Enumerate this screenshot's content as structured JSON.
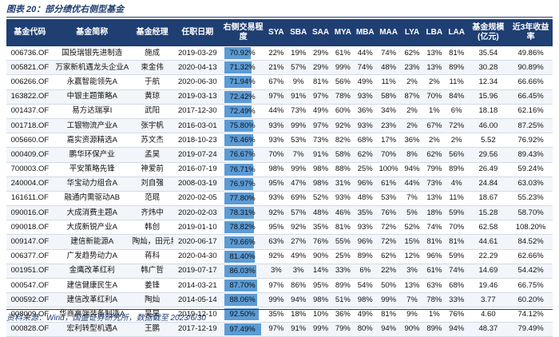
{
  "caption": "图表 20：部分绩优右侧型基金",
  "source": "资料来源：Wind，国盛证券研究所，数据截至 2023/6/30",
  "headers": [
    "基金代码",
    "基金简称",
    "基金经理",
    "任职日期",
    "右侧交易程度",
    "SYA",
    "SBA",
    "SAA",
    "MYA",
    "MBA",
    "MAA",
    "LYA",
    "LBA",
    "LAA",
    "基金规模(亿元)",
    "近3年收益率"
  ],
  "rows": [
    [
      "006736.OF",
      "国投瑞银先进制造",
      "施成",
      "2019-03-29",
      "70.92%",
      70.92,
      "22%",
      "19%",
      "29%",
      "61%",
      "44%",
      "74%",
      "62%",
      "13%",
      "81%",
      "35.54",
      "49.86%"
    ],
    [
      "005821.OF",
      "万家新机遇龙头企业A",
      "束金伟",
      "2020-04-13",
      "71.32%",
      71.32,
      "21%",
      "57%",
      "29%",
      "99%",
      "74%",
      "48%",
      "23%",
      "13%",
      "89%",
      "30.28",
      "90.89%"
    ],
    [
      "006266.OF",
      "永赢智能领先A",
      "于航",
      "2020-06-30",
      "71.94%",
      71.94,
      "67%",
      "9%",
      "81%",
      "56%",
      "49%",
      "11%",
      "2%",
      "2%",
      "11%",
      "12.34",
      "66.66%"
    ],
    [
      "163822.OF",
      "中银主题策略A",
      "黄琼",
      "2019-03-13",
      "72.42%",
      72.42,
      "97%",
      "91%",
      "97%",
      "78%",
      "93%",
      "58%",
      "87%",
      "70%",
      "84%",
      "15.96",
      "66.45%"
    ],
    [
      "001437.OF",
      "易方达瑞享I",
      "武阳",
      "2017-12-30",
      "72.49%",
      72.49,
      "44%",
      "73%",
      "49%",
      "60%",
      "36%",
      "34%",
      "2%",
      "1%",
      "6%",
      "18.18",
      "62.16%"
    ],
    [
      "001718.OF",
      "工银物流产业A",
      "张宇帆",
      "2016-03-01",
      "75.80%",
      75.8,
      "93%",
      "99%",
      "97%",
      "92%",
      "93%",
      "23%",
      "2%",
      "67%",
      "72%",
      "46.00",
      "87.25%"
    ],
    [
      "005660.OF",
      "嘉实资源精选A",
      "苏文杰",
      "2018-10-23",
      "76.46%",
      76.46,
      "93%",
      "53%",
      "73%",
      "82%",
      "68%",
      "17%",
      "36%",
      "2%",
      "2%",
      "5.52",
      "76.92%"
    ],
    [
      "000409.OF",
      "鹏华环保产业",
      "孟昊",
      "2019-07-24",
      "76.67%",
      76.67,
      "70%",
      "7%",
      "91%",
      "58%",
      "62%",
      "70%",
      "8%",
      "62%",
      "56%",
      "29.56",
      "89.43%"
    ],
    [
      "700003.OF",
      "平安策略先锋",
      "神爱前",
      "2016-07-19",
      "76.71%",
      76.71,
      "98%",
      "99%",
      "98%",
      "88%",
      "25%",
      "100%",
      "94%",
      "79%",
      "89%",
      "26.49",
      "59.24%"
    ],
    [
      "240004.OF",
      "华宝动力组合A",
      "刘自强",
      "2008-03-19",
      "76.97%",
      76.97,
      "95%",
      "47%",
      "98%",
      "31%",
      "96%",
      "61%",
      "44%",
      "73%",
      "4%",
      "24.84",
      "63.03%"
    ],
    [
      "161611.OF",
      "融通内需驱动AB",
      "范琨",
      "2020-02-05",
      "77.80%",
      77.8,
      "93%",
      "69%",
      "52%",
      "93%",
      "48%",
      "53%",
      "7%",
      "13%",
      "11%",
      "18.67",
      "55.23%"
    ],
    [
      "090016.OF",
      "大成消费主题A",
      "齐炜中",
      "2020-02-03",
      "78.31%",
      78.31,
      "92%",
      "57%",
      "48%",
      "46%",
      "35%",
      "76%",
      "5%",
      "18%",
      "59%",
      "15.28",
      "58.70%"
    ],
    [
      "090018.OF",
      "大成新锐产业A",
      "韩创",
      "2019-01-10",
      "78.82%",
      78.82,
      "95%",
      "92%",
      "35%",
      "81%",
      "93%",
      "72%",
      "52%",
      "74%",
      "70%",
      "62.58",
      "108.20%"
    ],
    [
      "009147.OF",
      "建信新能源A",
      "陶灿，田元泉",
      "2020-06-17",
      "79.66%",
      79.66,
      "63%",
      "27%",
      "76%",
      "55%",
      "96%",
      "72%",
      "15%",
      "81%",
      "81%",
      "44.61",
      "84.52%"
    ],
    [
      "006377.OF",
      "广发趋势动力A",
      "蒋科",
      "2020-04-30",
      "81.40%",
      81.4,
      "92%",
      "49%",
      "90%",
      "25%",
      "89%",
      "62%",
      "12%",
      "96%",
      "59%",
      "22.29",
      "62.66%"
    ],
    [
      "001951.OF",
      "金鹰改革红利",
      "韩广哲",
      "2019-07-17",
      "86.03%",
      86.03,
      "3%",
      "3%",
      "14%",
      "33%",
      "6%",
      "22%",
      "3%",
      "61%",
      "74%",
      "14.69",
      "54.42%"
    ],
    [
      "000547.OF",
      "建信健康民生A",
      "姜锋",
      "2014-03-21",
      "87.70%",
      87.7,
      "97%",
      "86%",
      "95%",
      "89%",
      "54%",
      "50%",
      "13%",
      "63%",
      "68%",
      "19.46",
      "66.75%"
    ],
    [
      "000592.OF",
      "建信改革红利A",
      "陶灿",
      "2014-05-14",
      "88.06%",
      88.06,
      "99%",
      "94%",
      "98%",
      "51%",
      "98%",
      "99%",
      "7%",
      "78%",
      "33%",
      "3.77",
      "60.20%"
    ],
    [
      "008009.OF",
      "华商高端装备制造A",
      "吴昊",
      "2019-12-10",
      "92.50%",
      92.5,
      "35%",
      "18%",
      "10%",
      "36%",
      "49%",
      "81%",
      "9%",
      "1%",
      "76%",
      "4.60",
      "74.12%"
    ],
    [
      "000828.OF",
      "宏利转型机遇A",
      "王鹏",
      "2017-12-19",
      "97.49%",
      97.49,
      "97%",
      "91%",
      "99%",
      "79%",
      "80%",
      "94%",
      "90%",
      "89%",
      "94%",
      "48.37",
      "79.49%"
    ]
  ],
  "colors": {
    "header_bg": "#1f3f73",
    "bar_fill": "#5b9bd5",
    "caption": "#1f3f73"
  }
}
